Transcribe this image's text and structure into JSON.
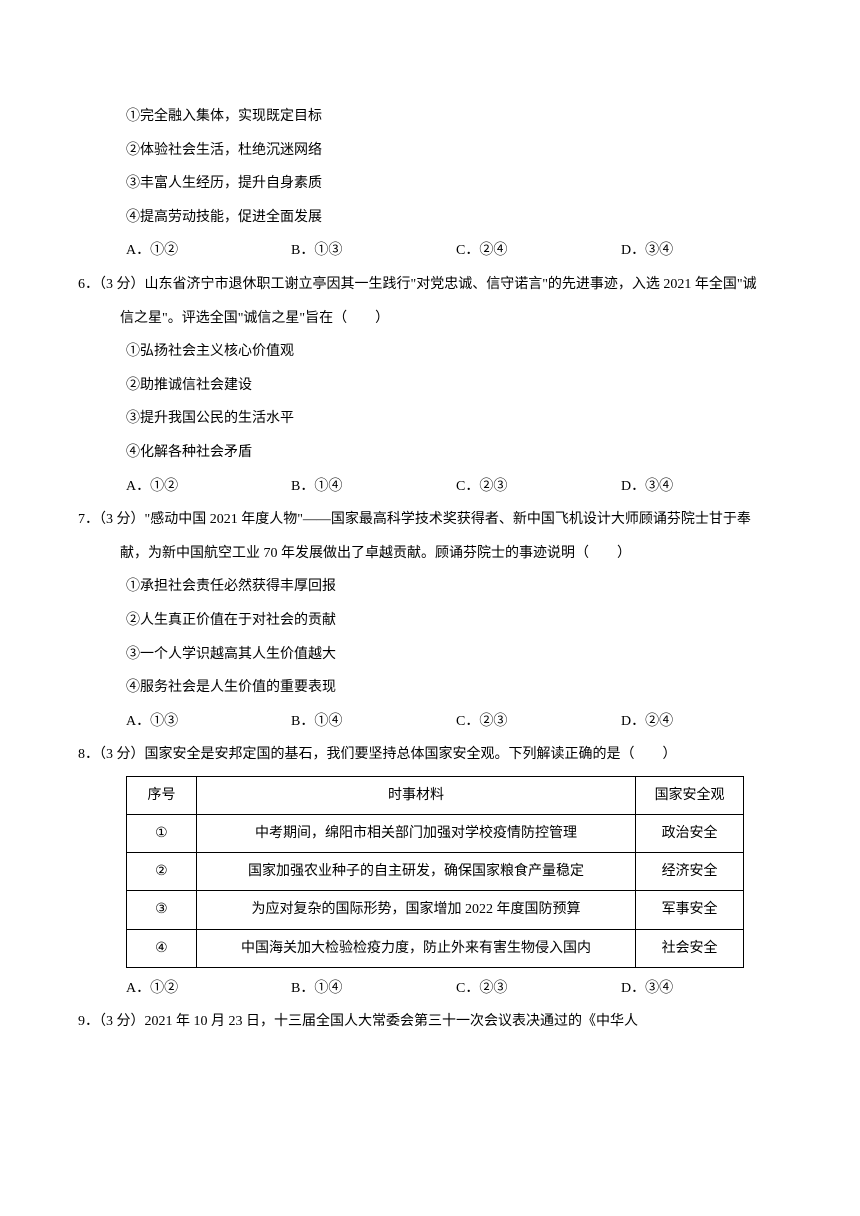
{
  "q5": {
    "s1": "①完全融入集体，实现既定目标",
    "s2": "②体验社会生活，杜绝沉迷网络",
    "s3": "③丰富人生经历，提升自身素质",
    "s4": "④提高劳动技能，促进全面发展",
    "opts": {
      "a": "A．①②",
      "b": "B．①③",
      "c": "C．②④",
      "d": "D．③④"
    }
  },
  "q6": {
    "stem": "6．（3 分）山东省济宁市退休职工谢立亭因其一生践行\"对党忠诚、信守诺言\"的先进事迹，入选 2021 年全国\"诚信之星\"。评选全国\"诚信之星\"旨在（　　）",
    "s1": "①弘扬社会主义核心价值观",
    "s2": "②助推诚信社会建设",
    "s3": "③提升我国公民的生活水平",
    "s4": "④化解各种社会矛盾",
    "opts": {
      "a": "A．①②",
      "b": "B．①④",
      "c": "C．②③",
      "d": "D．③④"
    }
  },
  "q7": {
    "stem": "7．（3 分）\"感动中国 2021 年度人物\"——国家最高科学技术奖获得者、新中国飞机设计大师顾诵芬院士甘于奉献，为新中国航空工业 70 年发展做出了卓越贡献。顾诵芬院士的事迹说明（　　）",
    "s1": "①承担社会责任必然获得丰厚回报",
    "s2": "②人生真正价值在于对社会的贡献",
    "s3": "③一个人学识越高其人生价值越大",
    "s4": "④服务社会是人生价值的重要表现",
    "opts": {
      "a": "A．①③",
      "b": "B．①④",
      "c": "C．②③",
      "d": "D．②④"
    }
  },
  "q8": {
    "stem": "8．（3 分）国家安全是安邦定国的基石，我们要坚持总体国家安全观。下列解读正确的是（　　）",
    "table": {
      "header": {
        "seq": "序号",
        "material": "时事材料",
        "view": "国家安全观"
      },
      "rows": [
        {
          "seq": "①",
          "material": "中考期间，绵阳市相关部门加强对学校疫情防控管理",
          "view": "政治安全"
        },
        {
          "seq": "②",
          "material": "国家加强农业种子的自主研发，确保国家粮食产量稳定",
          "view": "经济安全"
        },
        {
          "seq": "③",
          "material": "为应对复杂的国际形势，国家增加 2022 年度国防预算",
          "view": "军事安全"
        },
        {
          "seq": "④",
          "material": "中国海关加大检验检疫力度，防止外来有害生物侵入国内",
          "view": "社会安全"
        }
      ]
    },
    "opts": {
      "a": "A．①②",
      "b": "B．①④",
      "c": "C．②③",
      "d": "D．③④"
    }
  },
  "q9": {
    "stem": "9．（3 分）2021 年 10 月 23 日，十三届全国人大常委会第三十一次会议表决通过的《中华人"
  }
}
